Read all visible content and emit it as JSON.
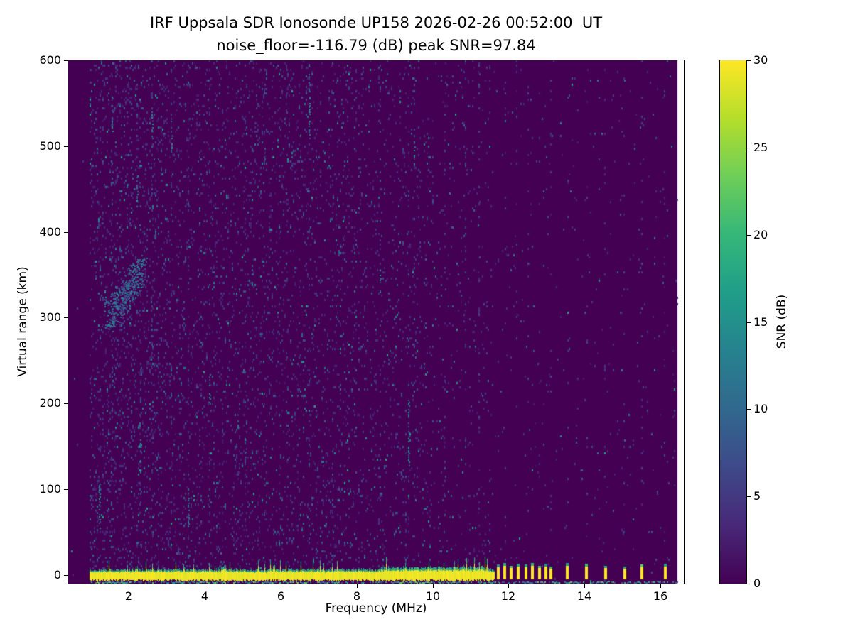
{
  "chart_data": {
    "type": "heatmap",
    "title": "IRF Uppsala SDR Ionosonde UP158 2026-02-26 00:52:00  UT",
    "subtitle": "noise_floor=-116.79 (dB) peak SNR=97.84",
    "station": "IRF Uppsala SDR Ionosonde UP158",
    "timestamp_ut": "2026-02-26 00:52:00",
    "noise_floor_db": -116.79,
    "peak_snr_db": 97.84,
    "xlabel": "Frequency (MHz)",
    "ylabel": "Virtual range (km)",
    "colorbar_label": "SNR (dB)",
    "colormap": "viridis",
    "xlim": [
      0.4,
      16.62
    ],
    "ylim": [
      -10,
      600
    ],
    "snr_range_db": [
      0,
      30
    ],
    "x_ticks": [
      2,
      4,
      6,
      8,
      10,
      12,
      14,
      16
    ],
    "y_ticks": [
      0,
      100,
      200,
      300,
      400,
      500,
      600
    ],
    "colorbar_ticks": [
      0,
      5,
      10,
      15,
      20,
      25,
      30
    ],
    "data_f_max_mhz": 16.45,
    "summary": "Ionogram: dark viridis background with sparse low-SNR noise speckle; strong continuous ground-echo band at ~0 km virtual range from ~1.0 to ~11.6 MHz (saturated yellow, ~30 dB); discrete sounding pulse marks at 0 km between ~11.7 and ~16.1 MHz; speckled noise row along the bottom edge across the full band; scattered teal noise streaks, densest between 1-3 MHz around 300-360 km.",
    "features": {
      "ground_echo_band": {
        "f_start_mhz": 0.97,
        "f_end_mhz": 11.62,
        "y_bottom_km": -5,
        "y_top_km": 8,
        "peak_snr_db": 30
      },
      "bottom_noise_row": {
        "f_start_mhz": 0.97,
        "f_end_mhz": 16.45,
        "y_km": -8.5
      },
      "pulse_marks": [
        {
          "f": 11.7,
          "h": 9
        },
        {
          "f": 11.87,
          "h": 11
        },
        {
          "f": 12.04,
          "h": 8
        },
        {
          "f": 12.22,
          "h": 10
        },
        {
          "f": 12.42,
          "h": 9
        },
        {
          "f": 12.6,
          "h": 11
        },
        {
          "f": 12.78,
          "h": 8
        },
        {
          "f": 12.95,
          "h": 10
        },
        {
          "f": 13.08,
          "h": 7
        },
        {
          "f": 13.52,
          "h": 11
        },
        {
          "f": 14.02,
          "h": 10
        },
        {
          "f": 14.52,
          "h": 8
        },
        {
          "f": 15.02,
          "h": 7
        },
        {
          "f": 15.48,
          "h": 9
        },
        {
          "f": 16.1,
          "h": 10
        }
      ],
      "noise_cluster": {
        "f0": 1.45,
        "f1": 2.35,
        "y0": 300,
        "y1": 358
      },
      "teal_streaks": [
        {
          "f": 6.73,
          "y0": 500,
          "y1": 597
        },
        {
          "f": 3.1,
          "y0": 492,
          "y1": 532
        },
        {
          "f": 2.6,
          "y0": 508,
          "y1": 542
        },
        {
          "f": 1.55,
          "y0": 518,
          "y1": 560
        },
        {
          "f": 2.2,
          "y0": 428,
          "y1": 468
        },
        {
          "f": 1.35,
          "y0": 288,
          "y1": 338
        },
        {
          "f": 9.5,
          "y0": 478,
          "y1": 520
        },
        {
          "f": 9.35,
          "y0": 128,
          "y1": 206
        },
        {
          "f": 5.05,
          "y0": 128,
          "y1": 162
        },
        {
          "f": 2.3,
          "y0": 118,
          "y1": 160
        },
        {
          "f": 3.55,
          "y0": 58,
          "y1": 92
        },
        {
          "f": 8.6,
          "y0": 328,
          "y1": 362
        },
        {
          "f": 4.1,
          "y0": 198,
          "y1": 236
        },
        {
          "f": 1.2,
          "y0": 55,
          "y1": 110
        }
      ],
      "faint_noise_columns": [
        1.3,
        1.55,
        2.05,
        2.3,
        2.6,
        3.1,
        3.55,
        4.1,
        4.45,
        5.05,
        5.55,
        6.15,
        6.73,
        7.35,
        8.05,
        8.6,
        9.35,
        9.5,
        10.3,
        10.85,
        11.2
      ],
      "rfi_stripes": [
        11.9,
        12.2,
        12.5,
        12.8,
        13.1,
        13.55,
        14.05,
        14.52,
        15.02,
        15.5,
        16.1
      ]
    }
  }
}
